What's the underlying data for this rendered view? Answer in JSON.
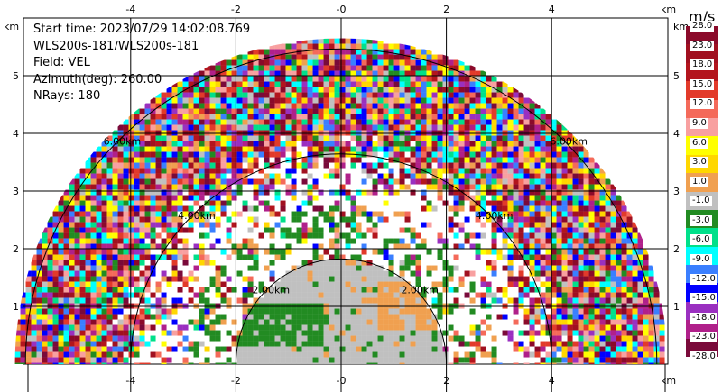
{
  "info": {
    "start_time": "Start time: 2023/07/29 14:02:08.769",
    "instrument": "WLS200s-181/WLS200s-181",
    "field": "Field: VEL",
    "azimuth": "Azimuth(deg): 260.00",
    "nrays": "NRays: 180"
  },
  "axes": {
    "unit": "km",
    "x_ticks": [
      "-4",
      "-2",
      "-0",
      "2",
      "4"
    ],
    "y_ticks": [
      "1",
      "2",
      "3",
      "4",
      "5"
    ]
  },
  "range_rings": [
    "2.00km",
    "2.00km",
    "4.00km",
    "4.00km",
    "6.00km",
    "6.00km"
  ],
  "colorbar": {
    "unit": "m/s",
    "labels": [
      "28.0",
      "23.0",
      "18.0",
      "15.0",
      "12.0",
      "9.0",
      "6.0",
      "3.0",
      "1.0",
      "-1.0",
      "-3.0",
      "-6.0",
      "-9.0",
      "-12.0",
      "-15.0",
      "-18.0",
      "-23.0",
      "-28.0"
    ],
    "colors": [
      "#8b0a2a",
      "#a11020",
      "#b3151d",
      "#e23a2a",
      "#f46a5a",
      "#f8a0a0",
      "#ffff00",
      "#ffd700",
      "#f0a050",
      "#c0c0c0",
      "#228b22",
      "#00e08a",
      "#00ffff",
      "#3a7fff",
      "#0000ff",
      "#9a30c0",
      "#b0208a",
      "#7a0a3a"
    ]
  }
}
